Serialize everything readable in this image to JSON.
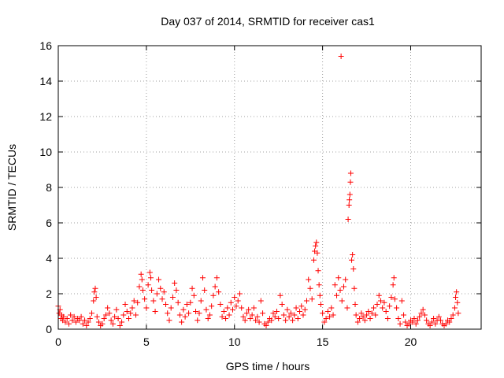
{
  "chart_data": {
    "type": "scatter",
    "title": "Day 037 of 2014, SRMTID for receiver cas1",
    "xlabel": "GPS time / hours",
    "ylabel": "SRMTID / TECUs",
    "xlim": [
      0,
      24
    ],
    "ylim": [
      0,
      16
    ],
    "xticks": [
      0,
      5,
      10,
      15,
      20
    ],
    "yticks": [
      0,
      2,
      4,
      6,
      8,
      10,
      12,
      14,
      16
    ],
    "grid": true,
    "marker": "+",
    "marker_color": "#ff0000",
    "series": [
      {
        "name": "SRMTID",
        "points": [
          [
            0.0,
            1.3
          ],
          [
            0.05,
            0.9
          ],
          [
            0.1,
            1.1
          ],
          [
            0.15,
            0.6
          ],
          [
            0.2,
            0.8
          ],
          [
            0.25,
            0.5
          ],
          [
            0.3,
            0.7
          ],
          [
            0.4,
            0.4
          ],
          [
            0.5,
            0.6
          ],
          [
            0.6,
            0.3
          ],
          [
            0.7,
            0.8
          ],
          [
            0.8,
            0.5
          ],
          [
            0.9,
            0.7
          ],
          [
            1.0,
            0.4
          ],
          [
            1.1,
            0.6
          ],
          [
            1.2,
            0.5
          ],
          [
            1.3,
            0.7
          ],
          [
            1.4,
            0.3
          ],
          [
            1.5,
            0.5
          ],
          [
            1.6,
            0.2
          ],
          [
            1.7,
            0.4
          ],
          [
            1.8,
            0.6
          ],
          [
            1.9,
            0.9
          ],
          [
            2.0,
            1.6
          ],
          [
            2.05,
            2.1
          ],
          [
            2.1,
            2.3
          ],
          [
            2.15,
            1.8
          ],
          [
            2.2,
            0.7
          ],
          [
            2.3,
            0.4
          ],
          [
            2.4,
            0.2
          ],
          [
            2.5,
            0.3
          ],
          [
            2.6,
            0.6
          ],
          [
            2.7,
            0.8
          ],
          [
            2.8,
            1.2
          ],
          [
            2.9,
            0.9
          ],
          [
            3.0,
            0.5
          ],
          [
            3.1,
            0.3
          ],
          [
            3.2,
            0.7
          ],
          [
            3.3,
            1.1
          ],
          [
            3.4,
            0.6
          ],
          [
            3.5,
            0.2
          ],
          [
            3.6,
            0.4
          ],
          [
            3.7,
            0.8
          ],
          [
            3.8,
            1.4
          ],
          [
            3.9,
            1.0
          ],
          [
            4.0,
            0.6
          ],
          [
            4.1,
            0.9
          ],
          [
            4.2,
            1.2
          ],
          [
            4.3,
            1.6
          ],
          [
            4.4,
            0.8
          ],
          [
            4.5,
            1.5
          ],
          [
            4.6,
            2.4
          ],
          [
            4.7,
            3.1
          ],
          [
            4.75,
            2.8
          ],
          [
            4.8,
            2.2
          ],
          [
            4.9,
            1.7
          ],
          [
            5.0,
            1.2
          ],
          [
            5.1,
            2.5
          ],
          [
            5.2,
            3.2
          ],
          [
            5.25,
            2.9
          ],
          [
            5.3,
            2.2
          ],
          [
            5.4,
            1.6
          ],
          [
            5.5,
            1.0
          ],
          [
            5.6,
            2.0
          ],
          [
            5.7,
            2.8
          ],
          [
            5.8,
            2.3
          ],
          [
            5.9,
            1.7
          ],
          [
            6.0,
            2.1
          ],
          [
            6.1,
            1.4
          ],
          [
            6.2,
            0.9
          ],
          [
            6.3,
            0.5
          ],
          [
            6.4,
            1.2
          ],
          [
            6.5,
            1.8
          ],
          [
            6.6,
            2.6
          ],
          [
            6.7,
            2.2
          ],
          [
            6.8,
            1.5
          ],
          [
            6.9,
            0.8
          ],
          [
            7.0,
            0.4
          ],
          [
            7.1,
            1.1
          ],
          [
            7.2,
            0.7
          ],
          [
            7.3,
            1.4
          ],
          [
            7.4,
            0.9
          ],
          [
            7.5,
            1.5
          ],
          [
            7.6,
            2.3
          ],
          [
            7.7,
            1.9
          ],
          [
            7.8,
            1.0
          ],
          [
            7.9,
            0.5
          ],
          [
            8.0,
            0.9
          ],
          [
            8.1,
            1.6
          ],
          [
            8.2,
            2.9
          ],
          [
            8.3,
            2.2
          ],
          [
            8.4,
            1.1
          ],
          [
            8.5,
            0.6
          ],
          [
            8.6,
            0.8
          ],
          [
            8.7,
            1.3
          ],
          [
            8.8,
            1.9
          ],
          [
            8.9,
            2.4
          ],
          [
            9.0,
            2.9
          ],
          [
            9.1,
            2.1
          ],
          [
            9.2,
            1.4
          ],
          [
            9.3,
            0.7
          ],
          [
            9.4,
            1.0
          ],
          [
            9.5,
            0.6
          ],
          [
            9.6,
            1.2
          ],
          [
            9.7,
            0.8
          ],
          [
            9.8,
            1.5
          ],
          [
            9.9,
            1.1
          ],
          [
            10.0,
            1.8
          ],
          [
            10.1,
            1.3
          ],
          [
            10.2,
            1.6
          ],
          [
            10.3,
            2.0
          ],
          [
            10.4,
            1.2
          ],
          [
            10.5,
            0.7
          ],
          [
            10.6,
            0.5
          ],
          [
            10.7,
            0.9
          ],
          [
            10.8,
            1.1
          ],
          [
            10.9,
            0.6
          ],
          [
            11.0,
            0.8
          ],
          [
            11.1,
            1.2
          ],
          [
            11.2,
            0.5
          ],
          [
            11.3,
            0.7
          ],
          [
            11.4,
            0.4
          ],
          [
            11.5,
            1.6
          ],
          [
            11.6,
            0.9
          ],
          [
            11.7,
            0.3
          ],
          [
            11.8,
            0.2
          ],
          [
            11.9,
            0.4
          ],
          [
            12.0,
            0.6
          ],
          [
            12.1,
            0.5
          ],
          [
            12.2,
            0.9
          ],
          [
            12.3,
            0.7
          ],
          [
            12.4,
            1.0
          ],
          [
            12.5,
            0.6
          ],
          [
            12.6,
            1.9
          ],
          [
            12.7,
            1.4
          ],
          [
            12.8,
            0.8
          ],
          [
            12.9,
            0.5
          ],
          [
            13.0,
            1.1
          ],
          [
            13.1,
            0.7
          ],
          [
            13.2,
            0.9
          ],
          [
            13.3,
            0.5
          ],
          [
            13.4,
            0.8
          ],
          [
            13.5,
            1.2
          ],
          [
            13.6,
            0.6
          ],
          [
            13.7,
            1.0
          ],
          [
            13.8,
            1.3
          ],
          [
            13.9,
            0.8
          ],
          [
            14.0,
            1.1
          ],
          [
            14.1,
            1.6
          ],
          [
            14.2,
            2.8
          ],
          [
            14.3,
            2.3
          ],
          [
            14.4,
            1.7
          ],
          [
            14.5,
            3.9
          ],
          [
            14.55,
            4.4
          ],
          [
            14.6,
            4.7
          ],
          [
            14.65,
            4.9
          ],
          [
            14.7,
            4.3
          ],
          [
            14.75,
            3.3
          ],
          [
            14.8,
            2.5
          ],
          [
            14.85,
            1.9
          ],
          [
            14.9,
            1.4
          ],
          [
            15.0,
            0.9
          ],
          [
            15.1,
            0.4
          ],
          [
            15.2,
            0.6
          ],
          [
            15.3,
            1.0
          ],
          [
            15.4,
            0.7
          ],
          [
            15.5,
            1.2
          ],
          [
            15.6,
            0.8
          ],
          [
            15.7,
            2.5
          ],
          [
            15.8,
            1.9
          ],
          [
            15.9,
            2.9
          ],
          [
            16.0,
            2.2
          ],
          [
            16.05,
            15.4
          ],
          [
            16.1,
            1.6
          ],
          [
            16.2,
            2.4
          ],
          [
            16.3,
            2.8
          ],
          [
            16.4,
            1.2
          ],
          [
            16.45,
            6.2
          ],
          [
            16.5,
            7.0
          ],
          [
            16.52,
            7.3
          ],
          [
            16.55,
            7.6
          ],
          [
            16.58,
            8.3
          ],
          [
            16.6,
            8.8
          ],
          [
            16.65,
            3.9
          ],
          [
            16.7,
            4.2
          ],
          [
            16.75,
            3.4
          ],
          [
            16.8,
            2.3
          ],
          [
            16.85,
            1.4
          ],
          [
            16.9,
            0.8
          ],
          [
            17.0,
            0.4
          ],
          [
            17.1,
            0.6
          ],
          [
            17.2,
            0.9
          ],
          [
            17.3,
            0.7
          ],
          [
            17.4,
            0.5
          ],
          [
            17.5,
            0.8
          ],
          [
            17.6,
            1.0
          ],
          [
            17.7,
            0.6
          ],
          [
            17.8,
            0.9
          ],
          [
            17.9,
            1.2
          ],
          [
            18.0,
            0.8
          ],
          [
            18.1,
            1.4
          ],
          [
            18.2,
            1.9
          ],
          [
            18.3,
            1.6
          ],
          [
            18.4,
            1.2
          ],
          [
            18.5,
            1.5
          ],
          [
            18.6,
            1.0
          ],
          [
            18.7,
            0.6
          ],
          [
            18.8,
            1.3
          ],
          [
            18.9,
            1.8
          ],
          [
            19.0,
            2.5
          ],
          [
            19.05,
            2.9
          ],
          [
            19.1,
            1.7
          ],
          [
            19.2,
            1.2
          ],
          [
            19.3,
            0.6
          ],
          [
            19.4,
            0.3
          ],
          [
            19.5,
            1.6
          ],
          [
            19.6,
            0.8
          ],
          [
            19.7,
            0.4
          ],
          [
            19.8,
            0.2
          ],
          [
            19.9,
            0.3
          ],
          [
            20.0,
            0.5
          ],
          [
            20.1,
            0.4
          ],
          [
            20.2,
            0.6
          ],
          [
            20.3,
            0.3
          ],
          [
            20.4,
            0.5
          ],
          [
            20.5,
            0.7
          ],
          [
            20.6,
            0.9
          ],
          [
            20.7,
            1.1
          ],
          [
            20.8,
            0.8
          ],
          [
            20.9,
            0.5
          ],
          [
            21.0,
            0.3
          ],
          [
            21.1,
            0.2
          ],
          [
            21.2,
            0.4
          ],
          [
            21.3,
            0.6
          ],
          [
            21.4,
            0.3
          ],
          [
            21.5,
            0.5
          ],
          [
            21.6,
            0.7
          ],
          [
            21.7,
            0.5
          ],
          [
            21.8,
            0.3
          ],
          [
            21.9,
            0.2
          ],
          [
            22.0,
            0.3
          ],
          [
            22.1,
            0.5
          ],
          [
            22.2,
            0.4
          ],
          [
            22.3,
            0.6
          ],
          [
            22.4,
            0.8
          ],
          [
            22.5,
            1.2
          ],
          [
            22.55,
            1.8
          ],
          [
            22.6,
            2.1
          ],
          [
            22.65,
            1.5
          ],
          [
            22.7,
            0.9
          ]
        ]
      }
    ]
  }
}
